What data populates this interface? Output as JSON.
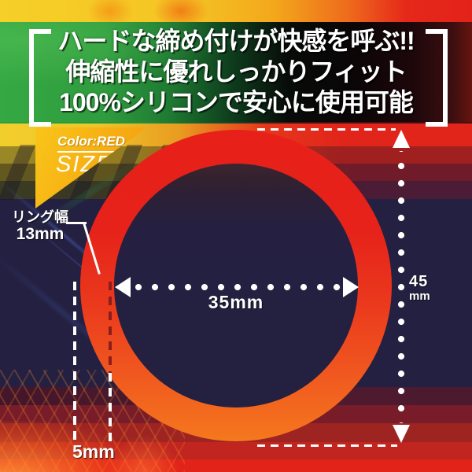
{
  "banner": {
    "line1": "ハードな締め付けが快感を呼ぶ!!",
    "line2": "伸縮性に優れしっかりフィット",
    "line3": "100%シリコンで安心に使用可能"
  },
  "size_tag": {
    "color_label": "Color:RED",
    "size_label": "SIZE"
  },
  "measurements": {
    "ring_width_label": "リング幅",
    "ring_width_value": "13mm",
    "inner_diameter": "35mm",
    "outer_diameter_value": "45",
    "outer_diameter_unit": "mm",
    "band_width": "5mm"
  },
  "colors": {
    "ring_red": "#e7221a",
    "ring_orange": "#f5781e",
    "background_navy": "#242041",
    "accent_green": "#2aa33c",
    "accent_yellow": "#f2ce2c",
    "tag_orange": "#f6ab12",
    "banner_red": "#e2251b"
  }
}
